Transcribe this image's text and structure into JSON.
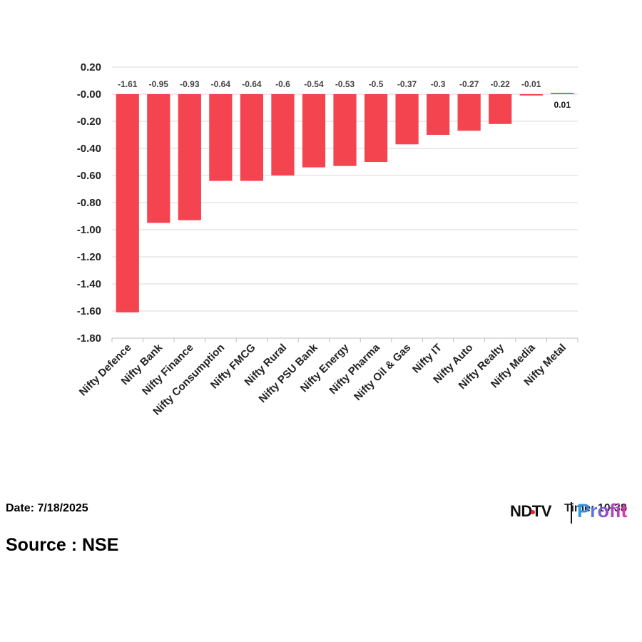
{
  "chart_data": {
    "type": "bar",
    "title": "",
    "xlabel": "",
    "ylabel": "",
    "categories": [
      "Nifty Defence",
      "Nifty Bank",
      "Nifty Finance",
      "Nifty Consumption",
      "Nifty FMCG",
      "Nifty Rural",
      "Nifty PSU Bank",
      "Nifty Energy",
      "Nifty Pharma",
      "Nifty Oil & Gas",
      "Nifty IT",
      "Nifty Auto",
      "Nifty Realty",
      "Nifty Media",
      "Nifty Metal"
    ],
    "values": [
      -1.61,
      -0.95,
      -0.93,
      -0.64,
      -0.64,
      -0.6,
      -0.54,
      -0.53,
      -0.5,
      -0.37,
      -0.3,
      -0.27,
      -0.22,
      -0.01,
      0.01
    ],
    "data_labels": [
      "-1.61",
      "-0.95",
      "-0.93",
      "-0.64",
      "-0.64",
      "-0.6",
      "-0.54",
      "-0.53",
      "-0.5",
      "-0.37",
      "-0.3",
      "-0.27",
      "-0.22",
      "-0.01",
      "0.01"
    ],
    "y_ticks": [
      0.2,
      0.0,
      -0.2,
      -0.4,
      -0.6,
      -0.8,
      -1.0,
      -1.2,
      -1.4,
      -1.6,
      -1.8
    ],
    "y_tick_labels": [
      "0.20",
      "-0.00",
      "-0.20",
      "-0.40",
      "-0.60",
      "-0.80",
      "-1.00",
      "-1.20",
      "-1.40",
      "-1.60",
      "-1.80"
    ],
    "ylim": [
      -1.8,
      0.2
    ],
    "grid": true,
    "colors": {
      "negative": "#f4444f",
      "positive": "#3cb043"
    }
  },
  "footer": {
    "date": "Date: 7/18/2025",
    "source": "Source : NSE"
  },
  "logo": {
    "ndtv": "NDTV",
    "time": "Time: 10:38",
    "profit": "Profit"
  }
}
